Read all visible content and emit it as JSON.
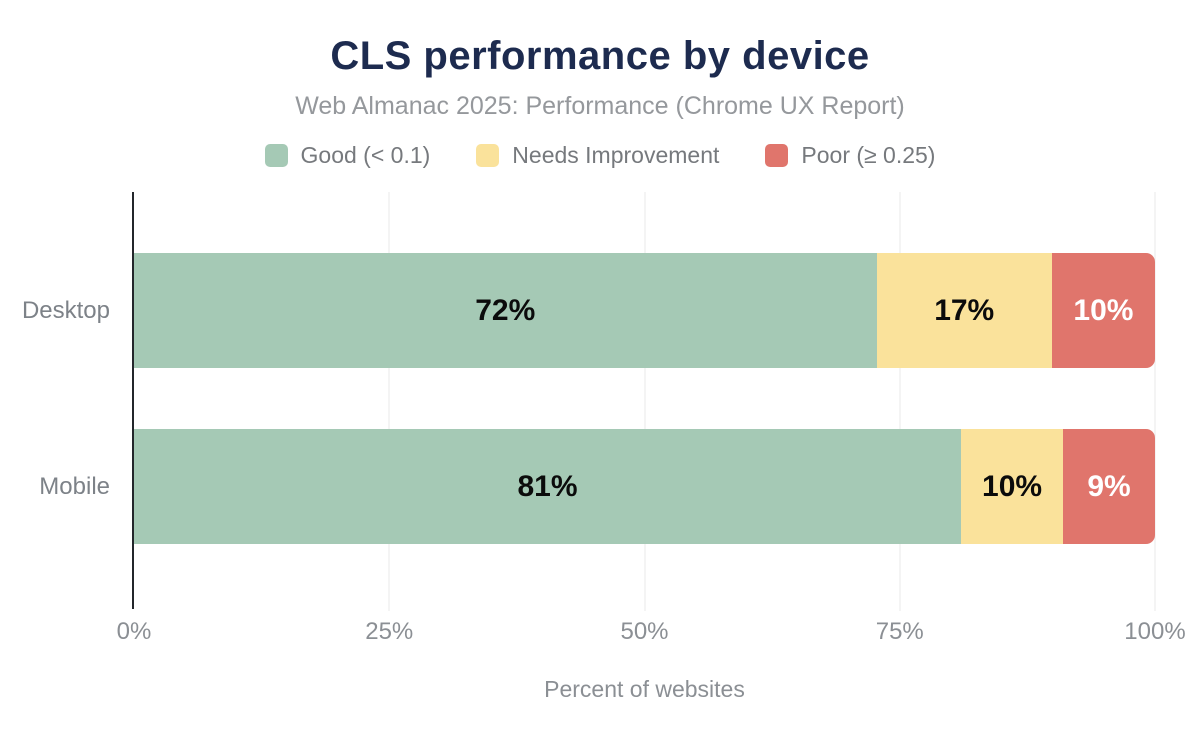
{
  "header": {
    "title": "CLS performance by device",
    "subtitle": "Web Almanac 2025: Performance (Chrome UX Report)"
  },
  "legend": {
    "items": [
      {
        "label": "Good (< 0.1)",
        "color": "#a5c9b5"
      },
      {
        "label": "Needs Improvement",
        "color": "#fae29b"
      },
      {
        "label": "Poor (≥ 0.25)",
        "color": "#e0756c"
      }
    ]
  },
  "axis": {
    "x_ticks": [
      "0%",
      "25%",
      "50%",
      "75%",
      "100%"
    ],
    "x_tick_pos": [
      0,
      25,
      50,
      75,
      100
    ],
    "x_title": "Percent of websites"
  },
  "chart_data": {
    "type": "bar",
    "orientation": "horizontal",
    "stacked": true,
    "title": "CLS performance by device",
    "subtitle": "Web Almanac 2025: Performance (Chrome UX Report)",
    "xlabel": "Percent of websites",
    "xlim": [
      0,
      100
    ],
    "grid": true,
    "legend_position": "top",
    "categories": [
      "Desktop",
      "Mobile"
    ],
    "series": [
      {
        "name": "Good (< 0.1)",
        "color": "#a5c9b5",
        "label_color": "#0b0b0b",
        "values": [
          72,
          81
        ]
      },
      {
        "name": "Needs Improvement",
        "color": "#fae29b",
        "label_color": "#0b0b0b",
        "values": [
          17,
          10
        ]
      },
      {
        "name": "Poor (≥ 0.25)",
        "color": "#e0756c",
        "label_color": "#ffffff",
        "values": [
          10,
          9
        ]
      }
    ],
    "value_labels": [
      [
        "72%",
        "17%",
        "10%"
      ],
      [
        "81%",
        "10%",
        "9%"
      ]
    ]
  },
  "colors": {
    "title_text": "#1d2b4f",
    "subtitle_text": "#95989c",
    "legend_text": "#76797d",
    "category_text": "#7d8288",
    "tick_text": "#8b8f94",
    "axis_line": "#23262b",
    "gridline": "#e8e8e8",
    "background": "#ffffff"
  }
}
